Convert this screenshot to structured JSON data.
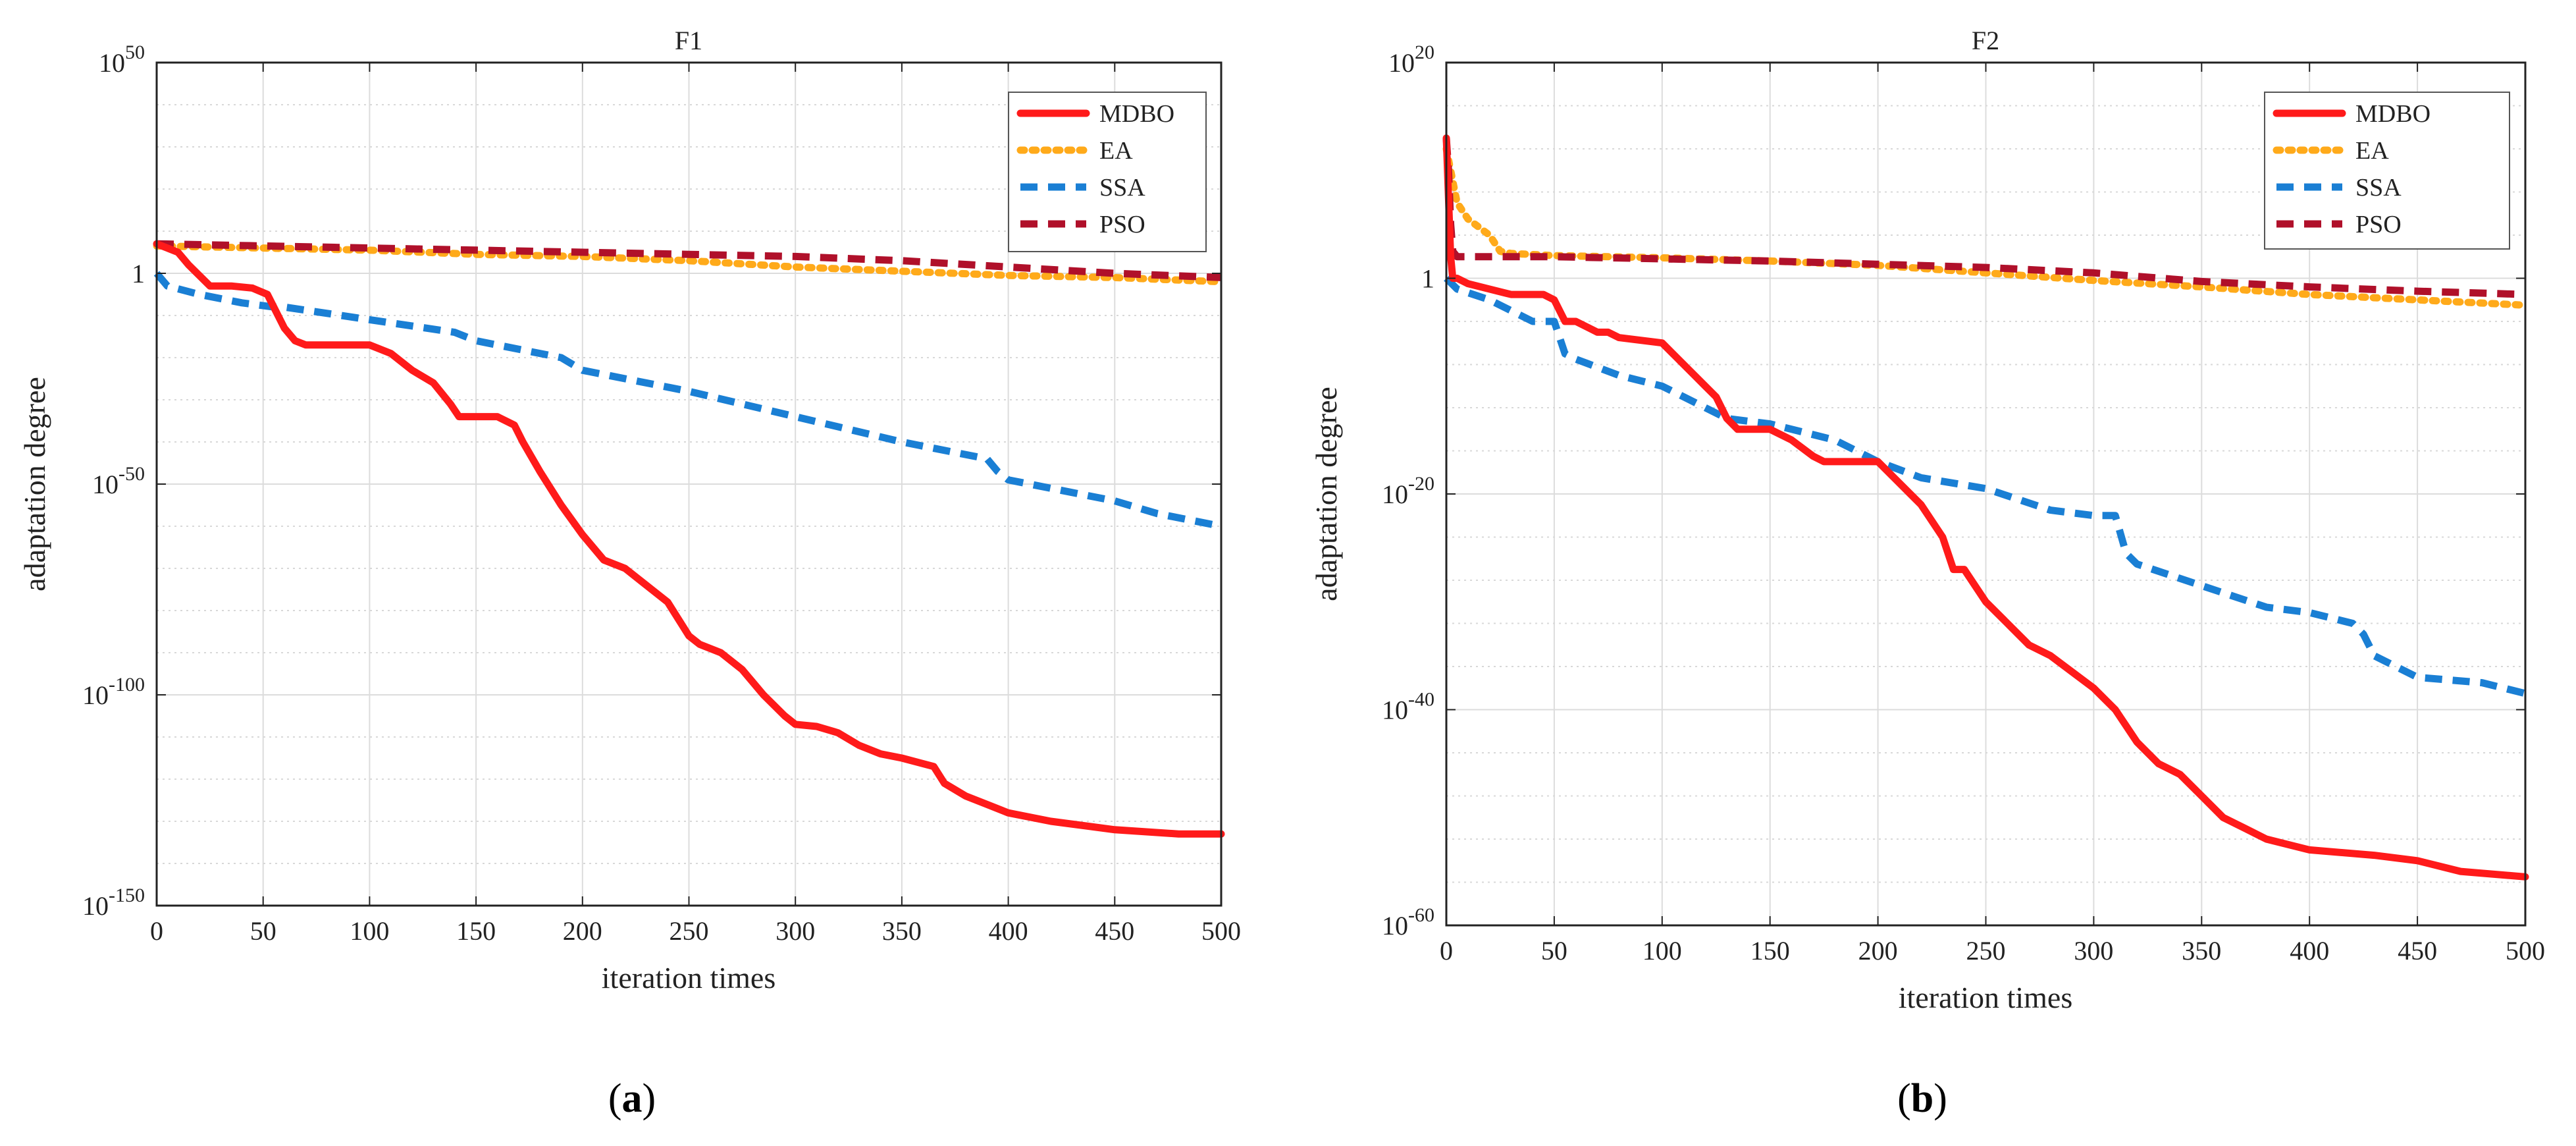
{
  "chart_data": [
    {
      "type": "line",
      "panel_label": "(a)",
      "panel_letter": "a",
      "title": "F1",
      "xlabel": "iteration times",
      "ylabel": "adaptation degree",
      "yscale": "log",
      "xlim": [
        0,
        500
      ],
      "ylim_exp": [
        -150,
        50
      ],
      "xticks": [
        0,
        50,
        100,
        150,
        200,
        250,
        300,
        350,
        400,
        450,
        500
      ],
      "yticks": [
        {
          "base": "10",
          "exp": "-150",
          "value_exp": -150
        },
        {
          "base": "10",
          "exp": "-100",
          "value_exp": -100
        },
        {
          "base": "10",
          "exp": "-50",
          "value_exp": -50
        },
        {
          "base": "1",
          "exp": "0",
          "value_exp": 0
        },
        {
          "base": "10",
          "exp": "50",
          "value_exp": 50
        }
      ],
      "grid": true,
      "legend_position": "top-right",
      "series": [
        {
          "name": "MDBO",
          "color": "#ff1a1a",
          "dash": "solid",
          "x": [
            0,
            10,
            15,
            25,
            35,
            45,
            52,
            56,
            60,
            65,
            70,
            80,
            100,
            110,
            120,
            130,
            138,
            142,
            150,
            160,
            168,
            172,
            180,
            190,
            200,
            210,
            220,
            230,
            240,
            250,
            255,
            265,
            275,
            285,
            295,
            300,
            310,
            320,
            330,
            340,
            350,
            365,
            370,
            380,
            390,
            400,
            420,
            450,
            480,
            500
          ],
          "y_exp": [
            7,
            5,
            2,
            -3,
            -3,
            -3.5,
            -5,
            -9,
            -13,
            -16,
            -17,
            -17,
            -17,
            -19,
            -23,
            -26,
            -31,
            -34,
            -34,
            -34,
            -36,
            -40,
            -47,
            -55,
            -62,
            -68,
            -70,
            -74,
            -78,
            -86,
            -88,
            -90,
            -94,
            -100,
            -105,
            -107,
            -107.5,
            -109,
            -112,
            -114,
            -115,
            -117,
            -121,
            -124,
            -126,
            -128,
            -130,
            -132,
            -133,
            -133
          ]
        },
        {
          "name": "EA",
          "color": "#ffaa1a",
          "dash": "dot",
          "x": [
            0,
            50,
            100,
            150,
            200,
            250,
            300,
            350,
            400,
            450,
            500
          ],
          "y_exp": [
            6.5,
            6,
            5.5,
            4.5,
            4,
            3,
            1.5,
            0.5,
            -0.5,
            -1,
            -2
          ]
        },
        {
          "name": "SSA",
          "color": "#1a7fd4",
          "dash": "dash",
          "x": [
            0,
            5,
            20,
            40,
            55,
            60,
            100,
            140,
            150,
            180,
            190,
            200,
            250,
            300,
            350,
            390,
            395,
            400,
            450,
            470,
            500
          ],
          "y_exp": [
            0,
            -3,
            -5,
            -7,
            -8,
            -8,
            -11,
            -14,
            -16,
            -19,
            -20,
            -23,
            -28,
            -34,
            -40,
            -44,
            -47,
            -49,
            -54,
            -57,
            -60
          ]
        },
        {
          "name": "PSO",
          "color": "#b0102a",
          "dash": "dash",
          "x": [
            0,
            50,
            100,
            150,
            200,
            250,
            300,
            350,
            400,
            450,
            500
          ],
          "y_exp": [
            7,
            6.5,
            6,
            5.5,
            5,
            4.5,
            4,
            3,
            1.5,
            0,
            -1
          ]
        }
      ]
    },
    {
      "type": "line",
      "panel_label": "(b)",
      "panel_letter": "b",
      "title": "F2",
      "xlabel": "iteration times",
      "ylabel": "adaptation degree",
      "yscale": "log",
      "xlim": [
        0,
        500
      ],
      "ylim_exp": [
        -60,
        20
      ],
      "xticks": [
        0,
        50,
        100,
        150,
        200,
        250,
        300,
        350,
        400,
        450,
        500
      ],
      "yticks": [
        {
          "base": "10",
          "exp": "-60",
          "value_exp": -60
        },
        {
          "base": "10",
          "exp": "-40",
          "value_exp": -40
        },
        {
          "base": "10",
          "exp": "-20",
          "value_exp": -20
        },
        {
          "base": "1",
          "exp": "0",
          "value_exp": 0
        },
        {
          "base": "10",
          "exp": "20",
          "value_exp": 20
        }
      ],
      "grid": true,
      "legend_position": "top-right",
      "series": [
        {
          "name": "MDBO",
          "color": "#ff1a1a",
          "dash": "solid",
          "x": [
            0,
            2,
            3,
            5,
            10,
            20,
            30,
            45,
            50,
            55,
            60,
            70,
            75,
            80,
            100,
            105,
            110,
            115,
            120,
            125,
            130,
            135,
            150,
            160,
            170,
            175,
            180,
            200,
            210,
            220,
            230,
            235,
            240,
            250,
            260,
            270,
            280,
            300,
            310,
            320,
            330,
            340,
            350,
            360,
            370,
            380,
            400,
            430,
            450,
            470,
            500
          ],
          "y_exp": [
            13,
            2,
            0,
            0,
            -0.5,
            -1,
            -1.5,
            -1.5,
            -2,
            -4,
            -4,
            -5,
            -5,
            -5.5,
            -6,
            -7,
            -8,
            -9,
            -10,
            -11,
            -13,
            -14,
            -14,
            -15,
            -16.5,
            -17,
            -17,
            -17,
            -19,
            -21,
            -24,
            -27,
            -27,
            -30,
            -32,
            -34,
            -35,
            -38,
            -40,
            -43,
            -45,
            -46,
            -48,
            -50,
            -51,
            -52,
            -53,
            -53.5,
            -54,
            -55,
            -55.5
          ]
        },
        {
          "name": "EA",
          "color": "#ffaa1a",
          "dash": "dot",
          "x": [
            0,
            2,
            5,
            10,
            20,
            25,
            30,
            50,
            100,
            150,
            200,
            250,
            300,
            350,
            400,
            450,
            500
          ],
          "y_exp": [
            12,
            10,
            7,
            5.5,
            4,
            2.5,
            2.3,
            2.1,
            1.9,
            1.6,
            1.2,
            0.5,
            -0.2,
            -0.8,
            -1.5,
            -2,
            -2.5
          ]
        },
        {
          "name": "SSA",
          "color": "#1a7fd4",
          "dash": "dash",
          "x": [
            0,
            5,
            20,
            40,
            50,
            55,
            60,
            80,
            100,
            110,
            130,
            150,
            180,
            200,
            220,
            250,
            280,
            300,
            310,
            315,
            320,
            350,
            380,
            400,
            420,
            425,
            430,
            450,
            480,
            500
          ],
          "y_exp": [
            0,
            -1,
            -2,
            -4,
            -4,
            -7,
            -7.5,
            -9,
            -10,
            -11,
            -13,
            -13.5,
            -15,
            -17,
            -18.5,
            -19.5,
            -21.5,
            -22,
            -22,
            -25.5,
            -26.5,
            -28.5,
            -30.5,
            -31,
            -32,
            -33,
            -35,
            -37,
            -37.5,
            -38.5
          ]
        },
        {
          "name": "PSO",
          "color": "#b0102a",
          "dash": "dash",
          "x": [
            0,
            1,
            2,
            3,
            5,
            50,
            100,
            150,
            200,
            250,
            300,
            350,
            400,
            450,
            500
          ],
          "y_exp": [
            13,
            10,
            5,
            2.5,
            2,
            2,
            1.8,
            1.6,
            1.3,
            1,
            0.5,
            -0.3,
            -0.8,
            -1.2,
            -1.5
          ]
        }
      ]
    }
  ]
}
